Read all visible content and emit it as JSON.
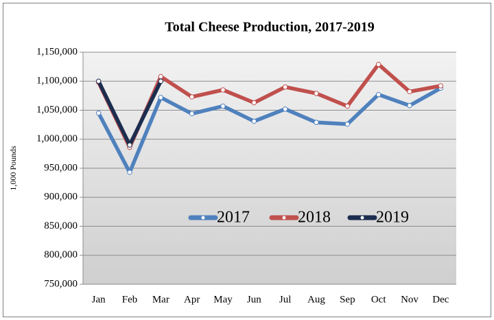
{
  "chart_data": {
    "type": "line",
    "title": "Total Cheese Production, 2017-2019",
    "y_label": "1,000 Pounds",
    "categories": [
      "Jan",
      "Feb",
      "Mar",
      "Apr",
      "May",
      "Jun",
      "Jul",
      "Aug",
      "Sep",
      "Oct",
      "Nov",
      "Dec"
    ],
    "series": [
      {
        "name": "2017",
        "color": "#4f81bd",
        "values": [
          1045000,
          943000,
          1072000,
          1044000,
          1057000,
          1031000,
          1052000,
          1029000,
          1026000,
          1077000,
          1058000,
          1088000
        ]
      },
      {
        "name": "2018",
        "color": "#c0504d",
        "values": [
          1098000,
          986000,
          1108000,
          1073000,
          1085000,
          1063000,
          1090000,
          1079000,
          1057000,
          1129000,
          1082000,
          1092000
        ]
      },
      {
        "name": "2019",
        "color": "#1c2d4f",
        "values": [
          1100000,
          990000,
          1100000,
          null,
          null,
          null,
          null,
          null,
          null,
          null,
          null,
          null
        ]
      }
    ],
    "ylim": [
      750000,
      1150000
    ],
    "yticks": [
      {
        "value": 750000,
        "label": "750,000"
      },
      {
        "value": 800000,
        "label": "800,000"
      },
      {
        "value": 850000,
        "label": "850,000"
      },
      {
        "value": 900000,
        "label": "900,000"
      },
      {
        "value": 950000,
        "label": "950,000"
      },
      {
        "value": 1000000,
        "label": "1,000,000"
      },
      {
        "value": 1050000,
        "label": "1,050,000"
      },
      {
        "value": 1100000,
        "label": "1,100,000"
      },
      {
        "value": 1150000,
        "label": "1,150,000"
      }
    ],
    "grid": true
  }
}
